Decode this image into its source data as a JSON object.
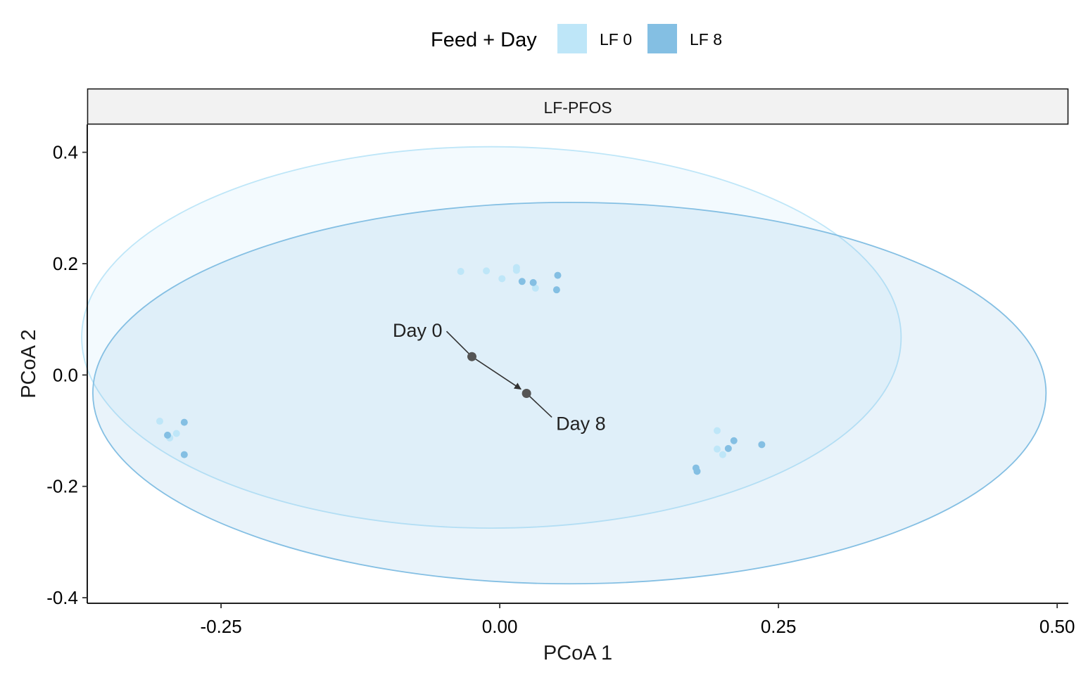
{
  "colors": {
    "LF 0": "#bee6f8",
    "LF 8": "#84bfe3",
    "centroid": "#555555",
    "arrow": "#333333",
    "strip_bg": "#f2f2f2"
  },
  "legend": {
    "title": "Feed + Day",
    "placement": "top",
    "items": [
      "LF 0",
      "LF 8"
    ]
  },
  "chart_data": {
    "type": "scatter",
    "facet": "LF-PFOS",
    "xlabel": "PCoA 1",
    "ylabel": "PCoA 2",
    "xlim": [
      -0.37,
      0.51
    ],
    "ylim": [
      -0.41,
      0.45
    ],
    "x_ticks": [
      -0.25,
      0.0,
      0.25,
      0.5
    ],
    "x_tick_labels": [
      "-0.25",
      "0.00",
      "0.25",
      "0.50"
    ],
    "y_ticks": [
      -0.4,
      -0.2,
      0.0,
      0.2,
      0.4
    ],
    "y_tick_labels": [
      "-0.4",
      "-0.2",
      "0.0",
      "0.2",
      "0.4"
    ],
    "grid": false,
    "series": [
      {
        "name": "LF 0",
        "points": [
          [
            -0.035,
            0.186
          ],
          [
            -0.012,
            0.187
          ],
          [
            0.002,
            0.173
          ],
          [
            0.015,
            0.193
          ],
          [
            0.015,
            0.188
          ],
          [
            0.032,
            0.156
          ],
          [
            -0.305,
            -0.083
          ],
          [
            -0.296,
            -0.113
          ],
          [
            -0.29,
            -0.105
          ],
          [
            0.195,
            -0.1
          ],
          [
            0.195,
            -0.133
          ],
          [
            0.2,
            -0.143
          ]
        ]
      },
      {
        "name": "LF 8",
        "points": [
          [
            0.02,
            0.168
          ],
          [
            0.03,
            0.166
          ],
          [
            0.052,
            0.179
          ],
          [
            0.051,
            0.153
          ],
          [
            -0.298,
            -0.108
          ],
          [
            -0.283,
            -0.085
          ],
          [
            -0.283,
            -0.143
          ],
          [
            0.21,
            -0.118
          ],
          [
            0.205,
            -0.132
          ],
          [
            0.235,
            -0.125
          ],
          [
            0.176,
            -0.167
          ],
          [
            0.177,
            -0.173
          ]
        ]
      }
    ],
    "ellipses": [
      {
        "series": "LF 0",
        "x_range": [
          -0.375,
          0.36
        ],
        "y_range": [
          -0.275,
          0.41
        ],
        "fill_opacity": 0.18
      },
      {
        "series": "LF 8",
        "x_range": [
          -0.365,
          0.49
        ],
        "y_range": [
          -0.375,
          0.31
        ],
        "fill_opacity": 0.18
      }
    ],
    "centroids": [
      {
        "label": "Day 0",
        "x": -0.025,
        "y": 0.033
      },
      {
        "label": "Day 8",
        "x": 0.024,
        "y": -0.033
      }
    ]
  }
}
